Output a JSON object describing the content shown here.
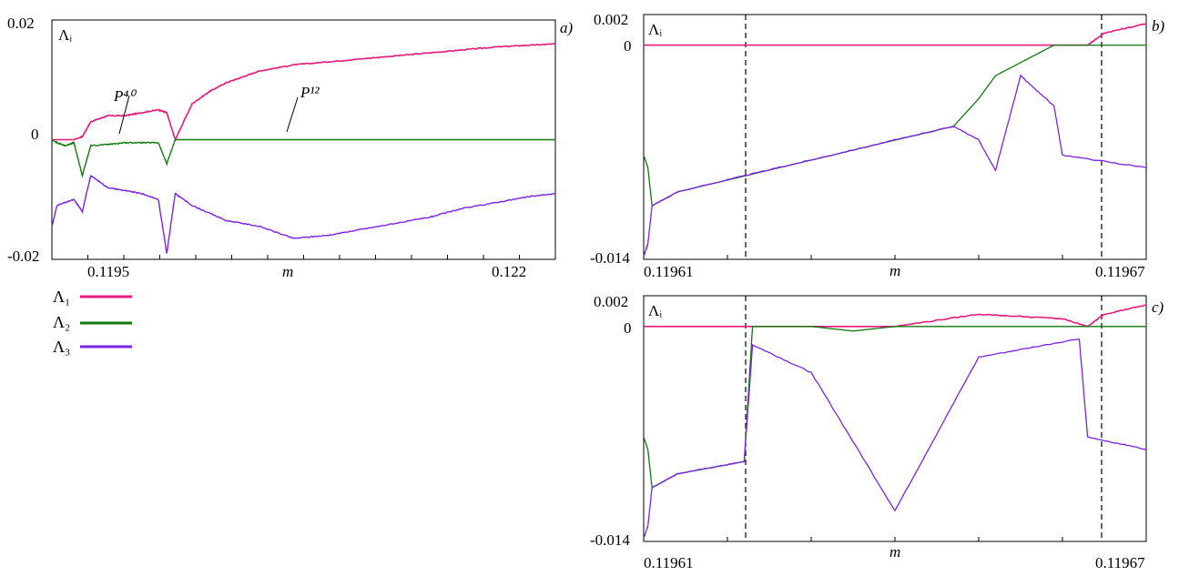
{
  "series_legend": [
    {
      "label": "Λ₁",
      "color": "#e8197d"
    },
    {
      "label": "Λ₂",
      "color": "#0f7a0f"
    },
    {
      "label": "Λ₃",
      "color": "#7a22e6"
    }
  ],
  "chart_data": [
    {
      "type": "line",
      "panel_label": "a)",
      "ylabel": "Λᵢ",
      "xlabel": "m",
      "ylim": [
        -0.02,
        0.02
      ],
      "yticks": [
        "0.02",
        "0",
        "-0.02"
      ],
      "xticks": [
        "0.1195",
        "0.122"
      ],
      "xlim": [
        0.11937,
        0.12235
      ],
      "annotations": [
        "P⁴⁰",
        "P¹²"
      ],
      "series": [
        {
          "name": "Λ₁",
          "x": [
            0.11937,
            0.1195,
            0.11955,
            0.1196,
            0.1197,
            0.1198,
            0.1199,
            0.12,
            0.12005,
            0.1201,
            0.1202,
            0.1203,
            0.1204,
            0.1205,
            0.1206,
            0.1208,
            0.121,
            0.1212,
            0.1214,
            0.1216,
            0.1218,
            0.122,
            0.1222,
            0.12235
          ],
          "y": [
            0,
            0,
            0.0005,
            0.003,
            0.004,
            0.004,
            0.0045,
            0.005,
            0.0045,
            0,
            0.006,
            0.008,
            0.0095,
            0.0105,
            0.0115,
            0.0125,
            0.013,
            0.0135,
            0.014,
            0.0145,
            0.015,
            0.0155,
            0.0158,
            0.016
          ]
        },
        {
          "name": "Λ₂",
          "x": [
            0.11937,
            0.1194,
            0.11945,
            0.1195,
            0.11955,
            0.1196,
            0.1197,
            0.1198,
            0.1199,
            0.12,
            0.12005,
            0.1201,
            0.1202,
            0.1206,
            0.121,
            0.1215,
            0.122,
            0.12235
          ],
          "y": [
            0,
            -0.0005,
            -0.001,
            -0.0005,
            -0.006,
            -0.001,
            -0.0008,
            -0.0005,
            -0.0005,
            -0.0005,
            -0.004,
            0,
            0,
            0,
            0,
            0,
            0,
            0
          ]
        },
        {
          "name": "Λ₃",
          "x": [
            0.11937,
            0.1194,
            0.1195,
            0.11955,
            0.1196,
            0.1197,
            0.1198,
            0.1199,
            0.12,
            0.12005,
            0.1201,
            0.1202,
            0.1204,
            0.1206,
            0.1208,
            0.121,
            0.1212,
            0.1214,
            0.1216,
            0.1218,
            0.122,
            0.1222,
            0.12235
          ],
          "y": [
            -0.0145,
            -0.011,
            -0.01,
            -0.012,
            -0.006,
            -0.008,
            -0.0085,
            -0.009,
            -0.01,
            -0.019,
            -0.009,
            -0.011,
            -0.0135,
            -0.0145,
            -0.0165,
            -0.016,
            -0.015,
            -0.014,
            -0.013,
            -0.0115,
            -0.0105,
            -0.0095,
            -0.009
          ]
        }
      ]
    },
    {
      "type": "line",
      "panel_label": "b)",
      "ylabel": "Λᵢ",
      "xlabel": "m",
      "ylim": [
        -0.014,
        0.002
      ],
      "yticks": [
        "0.002",
        "0",
        "-0.014"
      ],
      "xticks": [
        "0.11961",
        "0.11967"
      ],
      "xlim": [
        0.11961,
        0.11967
      ],
      "series": [
        {
          "name": "Λ₁",
          "x": [
            0.11961,
            0.11962,
            0.11963,
            0.11964,
            0.11965,
            0.11966,
            0.119663,
            0.119665,
            0.11967
          ],
          "y": [
            0,
            0,
            0,
            0,
            0,
            0,
            0,
            0.0008,
            0.0014
          ]
        },
        {
          "name": "Λ₂",
          "x": [
            0.11961,
            0.1196105,
            0.119611,
            0.119614,
            0.119647,
            0.11965,
            0.119652,
            0.119659,
            0.119662,
            0.11967
          ],
          "y": [
            -0.0072,
            -0.008,
            -0.0105,
            -0.0096,
            -0.0053,
            -0.0035,
            -0.002,
            0,
            0,
            0
          ]
        },
        {
          "name": "Λ₃",
          "x": [
            0.11961,
            0.1196105,
            0.119611,
            0.119614,
            0.11962,
            0.11963,
            0.11964,
            0.119647,
            0.11965,
            0.119652,
            0.119655,
            0.119659,
            0.11966,
            0.11967
          ],
          "y": [
            -0.0138,
            -0.013,
            -0.0105,
            -0.0096,
            -0.0088,
            -0.0075,
            -0.0062,
            -0.0053,
            -0.0062,
            -0.0082,
            -0.002,
            -0.004,
            -0.0072,
            -0.008
          ]
        }
      ]
    },
    {
      "type": "line",
      "panel_label": "c)",
      "ylabel": "Λᵢ",
      "xlabel": "m",
      "ylim": [
        -0.014,
        0.002
      ],
      "yticks": [
        "0.002",
        "0",
        "-0.014"
      ],
      "xticks": [
        "0.11961",
        "0.11967"
      ],
      "xlim": [
        0.11961,
        0.11967
      ],
      "series": [
        {
          "name": "Λ₁",
          "x": [
            0.11961,
            0.11962,
            0.11963,
            0.11964,
            0.11965,
            0.11966,
            0.119663,
            0.119665,
            0.11967
          ],
          "y": [
            0,
            0,
            0,
            0,
            0.0008,
            0.0005,
            0,
            0.0008,
            0.0014
          ]
        },
        {
          "name": "Λ₂",
          "x": [
            0.11961,
            0.1196105,
            0.119611,
            0.119614,
            0.119622,
            0.119623,
            0.11963,
            0.119635,
            0.11964,
            0.11965,
            0.11967
          ],
          "y": [
            -0.0072,
            -0.008,
            -0.0105,
            -0.0096,
            -0.0088,
            0,
            0,
            -0.0003,
            0,
            0,
            0
          ]
        },
        {
          "name": "Λ₃",
          "x": [
            0.11961,
            0.1196105,
            0.119611,
            0.119614,
            0.11962,
            0.119622,
            0.119623,
            0.11963,
            0.11964,
            0.11965,
            0.119662,
            0.119663,
            0.11967
          ],
          "y": [
            -0.0138,
            -0.013,
            -0.0105,
            -0.0096,
            -0.009,
            -0.0088,
            -0.0012,
            -0.003,
            -0.012,
            -0.002,
            -0.0008,
            -0.0072,
            -0.008
          ]
        }
      ]
    }
  ]
}
